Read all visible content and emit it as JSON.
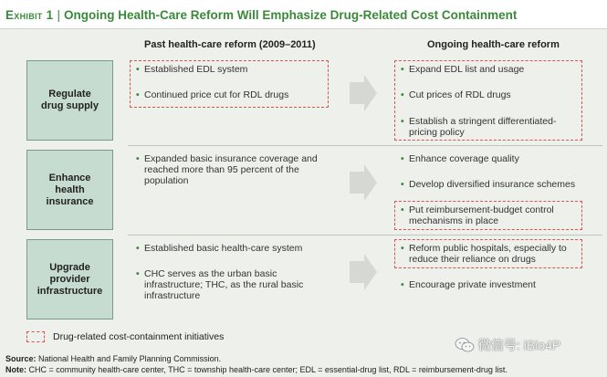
{
  "header": {
    "exhibit": "Exhibit 1",
    "separator": "|",
    "title": "Ongoing Health-Care Reform Will Emphasize Drug-Related Cost Containment"
  },
  "columns": {
    "past": "Past health-care reform (2009–2011)",
    "ongoing": "Ongoing health-care reform"
  },
  "rows": [
    {
      "label": "Regulate\ndrug supply",
      "past": [
        "Established EDL system",
        "Continued price cut for RDL drugs"
      ],
      "ongoing": [
        "Expand EDL list and usage",
        "Cut prices of RDL drugs",
        "Establish a stringent differentiated-\npricing policy"
      ]
    },
    {
      "label": "Enhance\nhealth\ninsurance",
      "past": [
        "Expanded basic insurance coverage and\nreached more than 95 percent of the\npopulation"
      ],
      "ongoing": [
        "Enhance coverage quality",
        "Develop diversified insurance schemes",
        "Put reimbursement-budget control\nmechanisms in place"
      ]
    },
    {
      "label": "Upgrade\nprovider\ninfrastructure",
      "past": [
        "Established basic health-care system",
        "CHC serves as the urban basic\ninfrastructure; THC, as the rural basic\ninfrastructure"
      ],
      "ongoing": [
        "Reform public hospitals, especially to\nreduce their reliance on drugs",
        "Encourage private investment"
      ]
    }
  ],
  "legend": {
    "text": "Drug-related cost-containment initiatives",
    "color": "#d9534f"
  },
  "footer": {
    "source_label": "Source:",
    "source_text": "National Health and Family Planning Commission.",
    "note_label": "Note:",
    "note_text": "CHC = community health-care center, THC = township health-care center; EDL = essential-drug list, RDL = reimbursement-drug list."
  },
  "watermark": {
    "text": "微信号: iBio4P",
    "icon": "wechat-icon"
  }
}
